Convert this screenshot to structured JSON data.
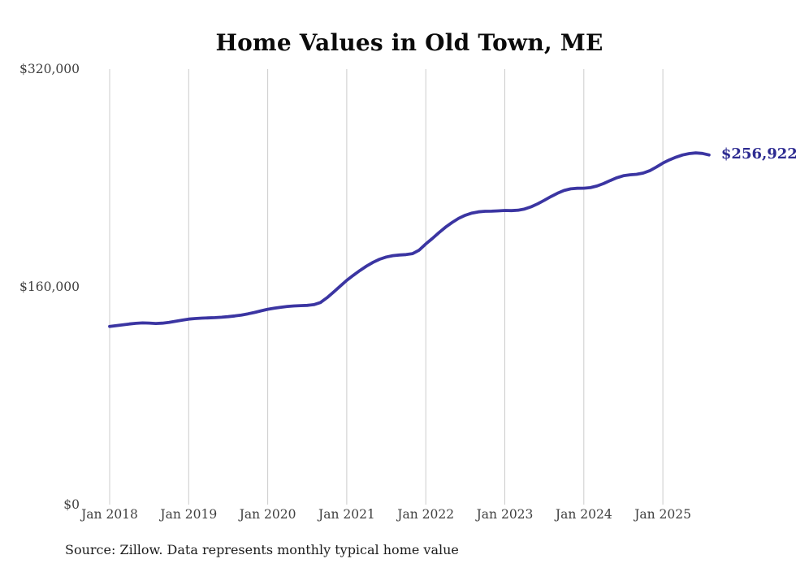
{
  "page": {
    "background": "#ffffff"
  },
  "chart_data": {
    "type": "line",
    "title": "Home Values in Old Town, ME",
    "x_start": "Jan 2018",
    "x_end": "Aug 2025",
    "frequency": "monthly",
    "x_tick_labels": [
      "Jan 2018",
      "Jan 2019",
      "Jan 2020",
      "Jan 2021",
      "Jan 2022",
      "Jan 2023",
      "Jan 2024",
      "Jan 2025"
    ],
    "y_tick_labels": [
      "$0",
      "$160,000",
      "$320,000"
    ],
    "ylim": [
      0,
      320000
    ],
    "grid": "vertical-only",
    "legend": "none",
    "line_color": "#3b35a2",
    "gridline_color": "#cccccc",
    "end_label": "$256,922",
    "end_label_color": "#2d2b91",
    "final_value": 256922,
    "source_note": "Source: Zillow. Data represents monthly typical home value",
    "values": [
      130900,
      131500,
      132100,
      132700,
      133200,
      133500,
      133400,
      133100,
      133300,
      133900,
      134700,
      135500,
      136300,
      136700,
      137000,
      137200,
      137400,
      137700,
      138100,
      138600,
      139300,
      140200,
      141200,
      142400,
      143500,
      144300,
      145000,
      145600,
      146000,
      146200,
      146400,
      146900,
      148500,
      152000,
      156200,
      160500,
      164800,
      168500,
      172000,
      175200,
      178000,
      180300,
      181900,
      182900,
      183400,
      183700,
      184400,
      187000,
      191500,
      195500,
      199800,
      203800,
      207300,
      210300,
      212600,
      214200,
      215100,
      215500,
      215600,
      215800,
      216100,
      216000,
      216300,
      217200,
      218800,
      221000,
      223600,
      226300,
      228800,
      230800,
      232000,
      232400,
      232500,
      232900,
      234100,
      235900,
      238100,
      240100,
      241600,
      242300,
      242700,
      243600,
      245300,
      248000,
      250900,
      253300,
      255300,
      256900,
      257900,
      258400,
      258000,
      256922
    ]
  }
}
